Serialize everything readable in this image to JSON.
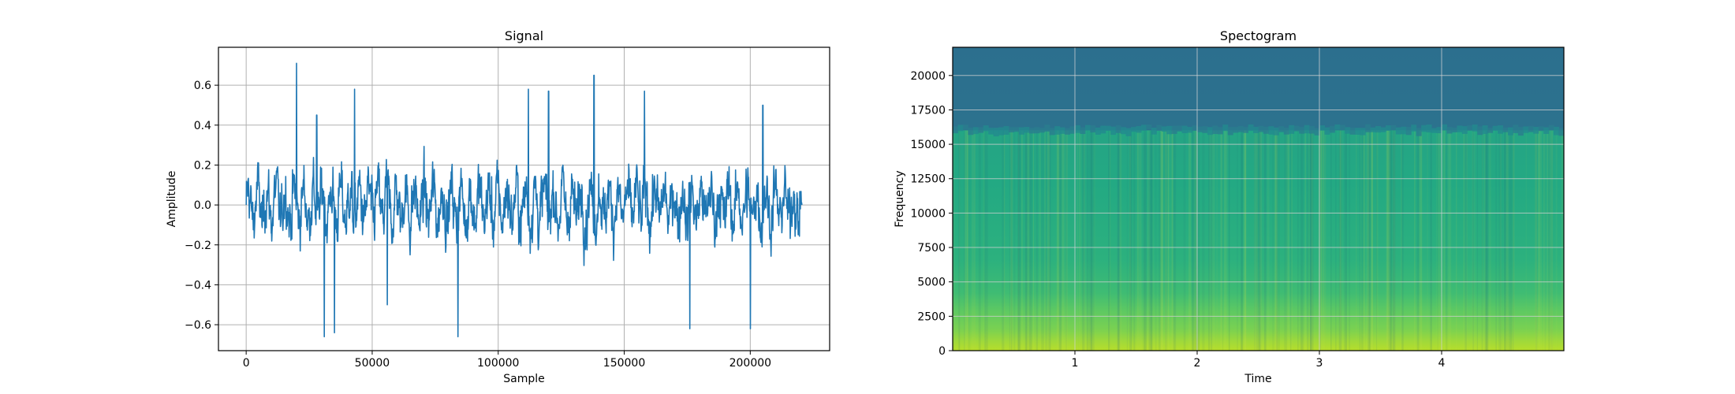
{
  "chart_data": [
    {
      "type": "line",
      "title": "Signal",
      "xlabel": "Sample",
      "ylabel": "Amplitude",
      "xlim": [
        -11000,
        231500
      ],
      "ylim": [
        -0.73,
        0.79
      ],
      "xticks": [
        0,
        50000,
        100000,
        150000,
        200000
      ],
      "xtick_labels": [
        "0",
        "50000",
        "100000",
        "150000",
        "200000"
      ],
      "yticks": [
        -0.6,
        -0.4,
        -0.2,
        0.0,
        0.2,
        0.4,
        0.6
      ],
      "ytick_labels": [
        "−0.6",
        "−0.4",
        "−0.2",
        "0.0",
        "0.2",
        "0.4",
        "0.6"
      ],
      "grid": true,
      "color": "#1f77b4",
      "series": [
        {
          "x": [
            0,
            20000,
            28000,
            31000,
            35000,
            43000,
            56000,
            84000,
            112000,
            120000,
            138000,
            158000,
            176000,
            200000,
            205000,
            220500
          ],
          "values": [
            0.0,
            0.71,
            0.45,
            -0.66,
            -0.64,
            0.58,
            -0.5,
            -0.66,
            0.58,
            0.57,
            0.65,
            0.57,
            -0.62,
            -0.62,
            0.5,
            0.0
          ]
        }
      ],
      "x_range": [
        0,
        220500
      ],
      "extremes": {
        "max": 0.71,
        "min": -0.66
      }
    },
    {
      "type": "heatmap",
      "title": "Spectogram",
      "xlabel": "Time",
      "ylabel": "Frequency",
      "xlim": [
        0,
        5.0
      ],
      "ylim": [
        0,
        22050
      ],
      "xticks": [
        1,
        2,
        3,
        4
      ],
      "xtick_labels": [
        "1",
        "2",
        "3",
        "4"
      ],
      "yticks": [
        0,
        2500,
        5000,
        7500,
        10000,
        12500,
        15000,
        17500,
        20000
      ],
      "ytick_labels": [
        "0",
        "2500",
        "5000",
        "7500",
        "10000",
        "12500",
        "15000",
        "17500",
        "20000"
      ],
      "grid": true,
      "colormap": "viridis",
      "cutoff_frequency": 16000,
      "bands": [
        {
          "freq_range": [
            0,
            1000
          ],
          "color": "#a0d93a"
        },
        {
          "freq_range": [
            1000,
            4000
          ],
          "color": "#5ec962"
        },
        {
          "freq_range": [
            4000,
            16000
          ],
          "color": "#21a585"
        },
        {
          "freq_range": [
            16000,
            22050
          ],
          "color": "#2c728e"
        }
      ]
    }
  ]
}
